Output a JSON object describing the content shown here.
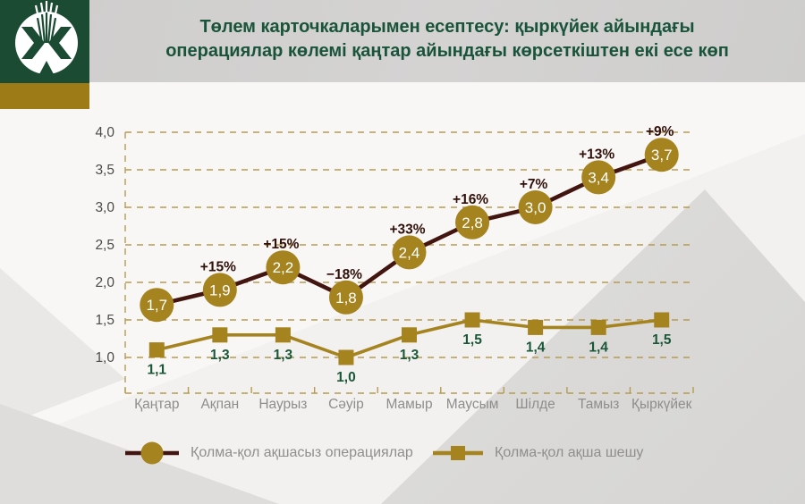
{
  "header": {
    "title_line1": "Төлем карточкаларымен есептесу: қыркүйек айындағы",
    "title_line2": "операциялар көлемі қаңтар айындағы көрсеткіштен екі есе көп"
  },
  "logo": {
    "emblem": "national-bank-of-kazakhstan-emblem"
  },
  "colors": {
    "title_green": "#19543a",
    "logo_green": "#1c4b33",
    "gold_band": "#9d7b16",
    "gold": "#a5831f",
    "dark_line": "#421510",
    "grid_gold": "#b79b52",
    "pct_label": "#301009",
    "value_label_green": "#1a5737",
    "y_axis_label": "#4b4b49",
    "x_axis_label": "#8e8d8b",
    "legend_text": "#8f8e8c",
    "header_band": "#cecdcc"
  },
  "chart_data": {
    "type": "line",
    "title": "Төлем карточкаларымен есептесу: қыркүйек айындағы операциялар көлемі қаңтар айындағы көрсеткіштен екі есе көп",
    "categories": [
      "Қаңтар",
      "Ақпан",
      "Наурыз",
      "Сәуір",
      "Мамыр",
      "Маусым",
      "Шілде",
      "Тамыз",
      "Қыркүйек"
    ],
    "series": [
      {
        "name": "Қолма-қол ақшасыз операциялар",
        "marker": "circle",
        "values": [
          1.7,
          1.9,
          2.2,
          1.8,
          2.4,
          2.8,
          3.0,
          3.4,
          3.7
        ],
        "labels": [
          "1,7",
          "1,9",
          "2,2",
          "1,8",
          "2,4",
          "2,8",
          "3,0",
          "3,4",
          "3,7"
        ],
        "changes": [
          null,
          "+15%",
          "+15%",
          "−18%",
          "+33%",
          "+16%",
          "+7%",
          "+13%",
          "+9%"
        ]
      },
      {
        "name": "Қолма-қол ақша шешу",
        "marker": "square",
        "values": [
          1.1,
          1.3,
          1.3,
          1.0,
          1.3,
          1.5,
          1.4,
          1.4,
          1.5
        ],
        "labels": [
          "1,1",
          "1,3",
          "1,3",
          "1,0",
          "1,3",
          "1,5",
          "1,4",
          "1,4",
          "1,5"
        ],
        "changes": [
          null,
          null,
          null,
          null,
          null,
          null,
          null,
          null,
          null
        ]
      }
    ],
    "yticks": [
      {
        "value": 1.0,
        "label": "1,0"
      },
      {
        "value": 1.5,
        "label": "1,5"
      },
      {
        "value": 2.0,
        "label": "2,0"
      },
      {
        "value": 2.5,
        "label": "2,5"
      },
      {
        "value": 3.0,
        "label": "3,0"
      },
      {
        "value": 3.5,
        "label": "3,5"
      },
      {
        "value": 4.0,
        "label": "4,0"
      }
    ],
    "ylim": [
      0.5,
      4.0
    ],
    "grid": "dashed-horizontal",
    "legend_position": "bottom"
  }
}
